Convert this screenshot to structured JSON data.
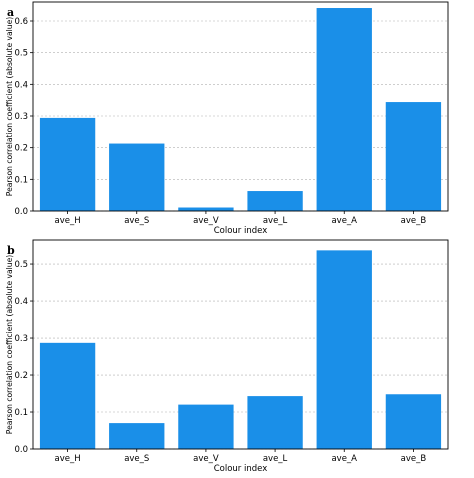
{
  "style": {
    "bar_color": "#1a8fe8",
    "grid_color": "#b0b0b0",
    "axis_color": "#000000"
  },
  "chart_data": [
    {
      "panel": "a",
      "type": "bar",
      "categories": [
        "ave_H",
        "ave_S",
        "ave_V",
        "ave_L",
        "ave_A",
        "ave_B"
      ],
      "values": [
        0.294,
        0.213,
        0.011,
        0.063,
        0.641,
        0.344
      ],
      "xlabel": "Colour index",
      "ylabel": "Pearson correlation coefficient (absolute value)",
      "ylim": [
        0,
        0.66
      ],
      "yticks": [
        0.0,
        0.1,
        0.2,
        0.3,
        0.4,
        0.5,
        0.6
      ],
      "ytick_labels": [
        "0.0",
        "0.1",
        "0.2",
        "0.3",
        "0.4",
        "0.5",
        "0.6"
      ],
      "grid": "horizontal dashed",
      "legend": "none"
    },
    {
      "panel": "b",
      "type": "bar",
      "categories": [
        "ave_H",
        "ave_S",
        "ave_V",
        "ave_L",
        "ave_A",
        "ave_B"
      ],
      "values": [
        0.287,
        0.07,
        0.12,
        0.143,
        0.537,
        0.148
      ],
      "xlabel": "Colour index",
      "ylabel": "Pearson correlation coefficient (absolute value)",
      "ylim": [
        0,
        0.565
      ],
      "yticks": [
        0.0,
        0.1,
        0.2,
        0.3,
        0.4,
        0.5
      ],
      "ytick_labels": [
        "0.0",
        "0.1",
        "0.2",
        "0.3",
        "0.4",
        "0.5"
      ],
      "grid": "horizontal dashed",
      "legend": "none"
    }
  ]
}
